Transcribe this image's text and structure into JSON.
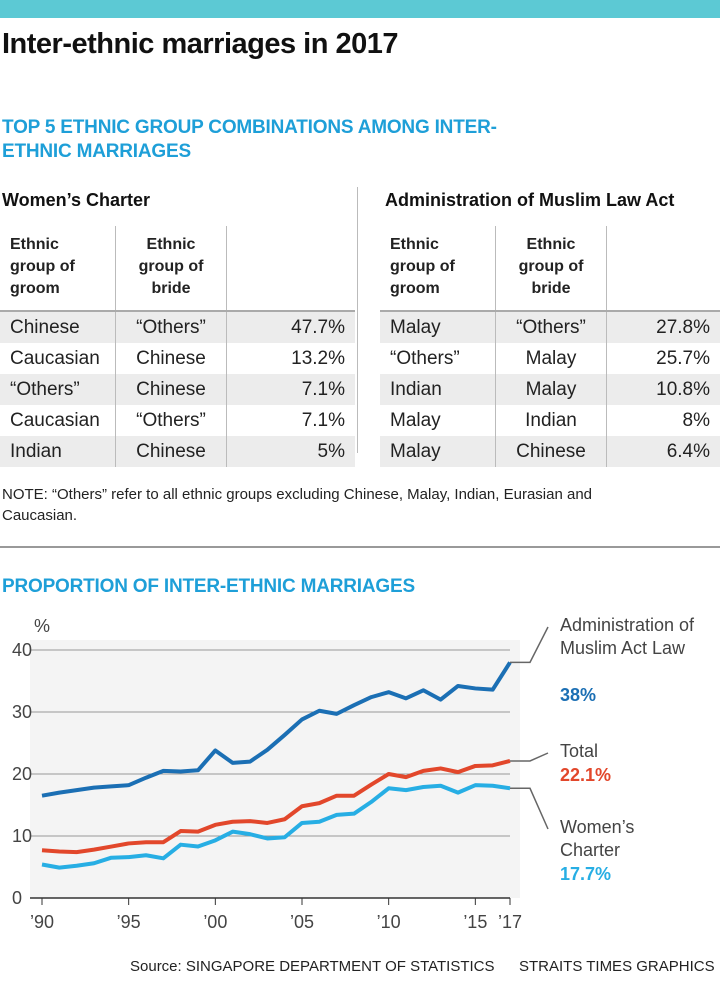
{
  "title": "Inter-ethnic marriages in 2017",
  "tables_title": "TOP 5 ETHNIC GROUP COMBINATIONS AMONG INTER-ETHNIC MARRIAGES",
  "tables": [
    {
      "title": "Women’s Charter",
      "headers": [
        "Ethnic group of groom",
        "Ethnic group of bride"
      ],
      "rows": [
        [
          "Chinese",
          "“Others”",
          "47.7%"
        ],
        [
          "Caucasian",
          "Chinese",
          "13.2%"
        ],
        [
          "“Others”",
          "Chinese",
          "7.1%"
        ],
        [
          "Caucasian",
          "“Others”",
          "7.1%"
        ],
        [
          "Indian",
          "Chinese",
          "5%"
        ]
      ]
    },
    {
      "title": "Administration of Muslim Law Act",
      "headers": [
        "Ethnic group of groom",
        "Ethnic group of bride"
      ],
      "rows": [
        [
          "Malay",
          "“Others”",
          "27.8%"
        ],
        [
          "“Others”",
          "Malay",
          "25.7%"
        ],
        [
          "Indian",
          "Malay",
          "10.8%"
        ],
        [
          "Malay",
          "Indian",
          "8%"
        ],
        [
          "Malay",
          "Chinese",
          "6.4%"
        ]
      ]
    }
  ],
  "note": "NOTE: “Others” refer to all ethnic groups excluding Chinese, Malay, Indian, Eurasian and Caucasian.",
  "source": "Source: SINGAPORE DEPARTMENT OF STATISTICS",
  "credit": "STRAITS TIMES GRAPHICS",
  "chart_data": {
    "type": "line",
    "title": "PROPORTION OF INTER-ETHNIC MARRIAGES",
    "y_label": "%",
    "x": [
      1990,
      1991,
      1992,
      1993,
      1994,
      1995,
      1996,
      1997,
      1998,
      1999,
      2000,
      2001,
      2002,
      2003,
      2004,
      2005,
      2006,
      2007,
      2008,
      2009,
      2010,
      2011,
      2012,
      2013,
      2014,
      2015,
      2016,
      2017
    ],
    "xlim": [
      1990,
      2017
    ],
    "xticks": [
      {
        "value": 1990,
        "label": "’90"
      },
      {
        "value": 1995,
        "label": "’95"
      },
      {
        "value": 2000,
        "label": "’00"
      },
      {
        "value": 2005,
        "label": "’05"
      },
      {
        "value": 2010,
        "label": "’10"
      },
      {
        "value": 2015,
        "label": "’15"
      },
      {
        "value": 2017,
        "label": "’17"
      }
    ],
    "ylim": [
      0,
      40
    ],
    "yticks": [
      0,
      10,
      20,
      30,
      40
    ],
    "grid": true,
    "series": [
      {
        "name": "Administration of Muslim Act Law",
        "color": "#1b6fb4",
        "values": [
          16.5,
          17.0,
          17.4,
          17.8,
          18.0,
          18.2,
          19.4,
          20.5,
          20.4,
          20.6,
          23.8,
          21.8,
          22.0,
          23.9,
          26.3,
          28.8,
          30.2,
          29.7,
          31.1,
          32.4,
          33.2,
          32.2,
          33.5,
          32.0,
          34.2,
          33.8,
          33.6,
          38.0
        ],
        "value_labels": [
          null,
          null,
          null,
          null,
          null,
          null,
          null,
          null,
          null,
          null,
          null,
          null,
          null,
          null,
          null,
          null,
          null,
          null,
          null,
          null,
          null,
          null,
          null,
          null,
          null,
          null,
          null,
          "38%"
        ]
      },
      {
        "name": "Total",
        "color": "#e2472b",
        "values": [
          7.7,
          7.5,
          7.4,
          7.8,
          8.3,
          8.8,
          9.0,
          9.0,
          10.8,
          10.7,
          11.8,
          12.3,
          12.4,
          12.1,
          12.7,
          14.8,
          15.3,
          16.5,
          16.5,
          18.3,
          20.0,
          19.5,
          20.5,
          20.9,
          20.3,
          21.3,
          21.4,
          22.1
        ],
        "value_labels": [
          null,
          null,
          null,
          null,
          null,
          null,
          null,
          null,
          null,
          null,
          null,
          null,
          null,
          null,
          null,
          null,
          null,
          null,
          null,
          null,
          null,
          null,
          null,
          null,
          null,
          null,
          null,
          "22.1%"
        ]
      },
      {
        "name": "Women’s Charter",
        "color": "#27aee4",
        "values": [
          5.4,
          4.9,
          5.2,
          5.6,
          6.5,
          6.6,
          6.9,
          6.4,
          8.6,
          8.3,
          9.3,
          10.7,
          10.3,
          9.6,
          9.8,
          12.1,
          12.3,
          13.4,
          13.6,
          15.5,
          17.7,
          17.4,
          17.9,
          18.1,
          17.0,
          18.2,
          18.1,
          17.7
        ],
        "value_labels": [
          null,
          null,
          null,
          null,
          null,
          null,
          null,
          null,
          null,
          null,
          null,
          null,
          null,
          null,
          null,
          null,
          null,
          null,
          null,
          null,
          null,
          null,
          null,
          null,
          null,
          null,
          null,
          "17.7%"
        ]
      }
    ]
  }
}
